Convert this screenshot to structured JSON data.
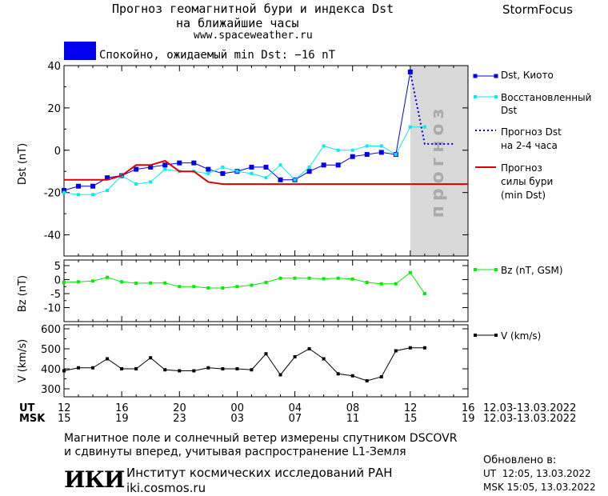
{
  "header": {
    "title_line1": "Прогноз геомагнитной бури и индекса Dst",
    "title_line2": "на ближайшие часы",
    "site": "www.spaceweather.ru",
    "brand": "StormFocus"
  },
  "status": {
    "text": "Спокойно, ожидаемый min Dst: −16 nT",
    "color": "#0000ee"
  },
  "colors": {
    "dst_kyoto": "#0000ee",
    "dst_restored": "#00eeee",
    "dst_forecast": "#0000ee",
    "storm_forecast": "#dd0000",
    "bz": "#00ee00",
    "v": "#000000",
    "forecast_zone": "#d9d9d9"
  },
  "legend": {
    "dst_kyoto": "Dst, Киото",
    "dst_restored_1": "Восстановленный",
    "dst_restored_2": "Dst",
    "dst_forecast_1": "Прогноз Dst",
    "dst_forecast_2": "на 2-4 часа",
    "storm_1": "Прогноз",
    "storm_2": "силы бури",
    "storm_3": "(min Dst)",
    "bz": "Bz (nT, GSM)",
    "v": "V (km/s)"
  },
  "forecast_zone_label": "прогноз",
  "time_axis": {
    "ut_label": "UT",
    "msk_label": "MSK",
    "ut_ticks": [
      "12",
      "16",
      "20",
      "00",
      "04",
      "08",
      "12",
      "16"
    ],
    "msk_ticks": [
      "15",
      "19",
      "23",
      "03",
      "07",
      "11",
      "15",
      "19"
    ],
    "date_range_ut": "12.03-13.03.2022",
    "date_range_msk": "12.03-13.03.2022",
    "range_hours": [
      0,
      28
    ],
    "major_tick_every_hours": 4
  },
  "footer": {
    "line1": "Магнитное поле и солнечный ветер измерены спутником DSCOVR",
    "line2": "и сдвинуты вперед, учитывая распространение L1-Земля",
    "logo": "ИКИ",
    "institute": "Институт космических исследований РАН",
    "site": "iki.cosmos.ru",
    "updated_label": "Обновлено в:",
    "updated_ut": "UT  12:05, 13.03.2022",
    "updated_msk": "MSK 15:05, 13.03.2022"
  },
  "chart_data": [
    {
      "type": "line",
      "ylabel": "Dst (nT)",
      "ylim": [
        -50,
        40
      ],
      "yticks": [
        40,
        20,
        0,
        -20,
        -40
      ],
      "forecast_zone_hours": [
        24,
        28
      ],
      "series": [
        {
          "name": "Dst, Киото",
          "x": [
            0,
            1,
            2,
            3,
            4,
            5,
            6,
            7,
            8,
            9,
            10,
            11,
            12,
            13,
            14,
            15,
            16,
            17,
            18,
            19,
            20,
            21,
            22,
            23,
            24
          ],
          "values": [
            -19,
            -17,
            -17,
            -13,
            -12,
            -9,
            -8,
            -7,
            -6,
            -6,
            -9,
            -11,
            -10,
            -8,
            -8,
            -14,
            -14,
            -10,
            -7,
            -7,
            -3,
            -2,
            -1,
            -2,
            37
          ]
        },
        {
          "name": "Восстановленный Dst",
          "x": [
            0,
            1,
            2,
            3,
            4,
            5,
            6,
            7,
            8,
            9,
            10,
            11,
            12,
            13,
            14,
            15,
            16,
            17,
            18,
            19,
            20,
            21,
            22,
            23,
            24,
            25
          ],
          "values": [
            -20,
            -21,
            -21,
            -19,
            -12,
            -16,
            -15,
            -9,
            -10,
            -10,
            -11,
            -8,
            -10,
            -11,
            -13,
            -7,
            -14,
            -8,
            2,
            0,
            0,
            2,
            2,
            -2,
            11,
            11
          ]
        },
        {
          "name": "Прогноз Dst на 2-4 часа",
          "x": [
            24,
            25,
            26,
            27
          ],
          "values": [
            37,
            3,
            3,
            3
          ]
        },
        {
          "name": "Прогноз силы бури (min Dst)",
          "x": [
            0,
            3,
            4,
            5,
            6,
            7,
            8,
            9,
            10,
            11,
            12,
            13,
            14,
            15,
            16,
            17,
            18,
            19,
            20,
            21,
            22,
            23,
            24,
            28
          ],
          "values": [
            -14,
            -14,
            -12,
            -7,
            -7,
            -5,
            -10,
            -10,
            -15,
            -16,
            -16,
            -16,
            -16,
            -16,
            -16,
            -16,
            -16,
            -16,
            -16,
            -16,
            -16,
            -16,
            -16,
            -16
          ]
        }
      ]
    },
    {
      "type": "line",
      "ylabel": "Bz (nT)",
      "ylim": [
        -15,
        7
      ],
      "yticks": [
        5,
        0,
        -5,
        -10
      ],
      "series": [
        {
          "name": "Bz (nT, GSM)",
          "x": [
            0,
            1,
            2,
            3,
            4,
            5,
            6,
            7,
            8,
            9,
            10,
            11,
            12,
            13,
            14,
            15,
            16,
            17,
            18,
            19,
            20,
            21,
            22,
            23,
            24,
            25
          ],
          "values": [
            -1,
            -0.8,
            -0.5,
            0.8,
            -0.8,
            -1.3,
            -1.2,
            -1.2,
            -2.5,
            -2.5,
            -3,
            -3,
            -2.5,
            -2,
            -1,
            0.5,
            0.5,
            0.5,
            0.3,
            0.5,
            0.2,
            -1,
            -1.5,
            -1.5,
            2.5,
            -5
          ]
        }
      ]
    },
    {
      "type": "line",
      "ylabel": "V (km/s)",
      "ylim": [
        260,
        620
      ],
      "yticks": [
        600,
        500,
        400,
        300
      ],
      "series": [
        {
          "name": "V (km/s)",
          "x": [
            0,
            1,
            2,
            3,
            4,
            5,
            6,
            7,
            8,
            9,
            10,
            11,
            12,
            13,
            14,
            15,
            16,
            17,
            18,
            19,
            20,
            21,
            22,
            23,
            24,
            25
          ],
          "values": [
            390,
            405,
            405,
            450,
            400,
            400,
            455,
            395,
            390,
            390,
            405,
            400,
            400,
            395,
            475,
            370,
            460,
            500,
            450,
            375,
            365,
            340,
            360,
            490,
            505,
            505
          ]
        }
      ]
    }
  ]
}
